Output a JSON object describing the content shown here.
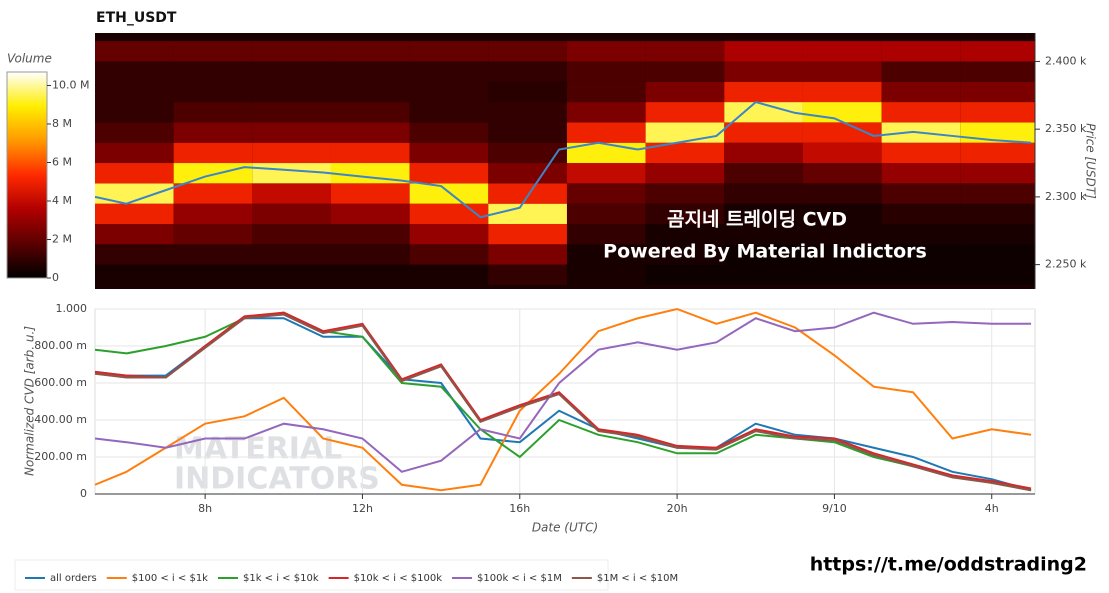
{
  "chart_data": [
    {
      "type": "heatmap",
      "title": "ETH_USDT",
      "colorbar_title": "Volume",
      "ylabel": "Price [USDT]",
      "x_edges": [
        5.2,
        7.2,
        9.2,
        11.2,
        13.2,
        15.2,
        17.2,
        19.2,
        21.2,
        23.2,
        25.2,
        27.2,
        29.1
      ],
      "y_edges": [
        2235,
        2250,
        2265,
        2280,
        2295,
        2310,
        2325,
        2340,
        2355,
        2370,
        2385,
        2400,
        2415
      ],
      "z": [
        [
          0.5,
          0.5,
          0.5,
          0.5,
          0.5,
          1,
          0.5,
          0.3,
          0.3,
          0.3,
          0.3,
          0.3
        ],
        [
          1,
          1,
          1,
          1,
          1.5,
          2.5,
          0.5,
          0.5,
          0.3,
          0.3,
          0.3,
          0.3
        ],
        [
          2.5,
          2,
          1.5,
          1.5,
          3,
          5,
          1,
          0.5,
          0.5,
          0.5,
          0.5,
          0.5
        ],
        [
          5,
          3,
          2.5,
          3,
          5,
          9.5,
          1.5,
          1,
          0.5,
          0.5,
          0.8,
          0.8
        ],
        [
          9.5,
          5,
          4,
          5,
          9,
          5,
          2,
          1.5,
          1,
          1,
          1.5,
          1.5
        ],
        [
          5,
          9,
          9.5,
          9,
          5,
          2.5,
          4,
          3,
          1.5,
          2,
          3,
          3
        ],
        [
          2.5,
          5,
          5,
          5,
          2.5,
          1.5,
          9,
          5,
          3,
          4,
          5,
          5
        ],
        [
          1.5,
          2.5,
          2.5,
          2.5,
          1.5,
          1,
          5,
          9.5,
          5,
          5,
          9.5,
          9
        ],
        [
          1,
          1.5,
          1.5,
          1.5,
          1,
          1,
          2.5,
          5,
          9.5,
          9,
          5,
          5
        ],
        [
          1,
          1,
          1,
          1,
          1,
          0.8,
          1.5,
          2.5,
          5,
          5,
          2.5,
          2.5
        ],
        [
          1,
          1,
          1,
          1,
          1,
          1,
          1.5,
          1.5,
          2.5,
          2.5,
          1.5,
          1.5
        ],
        [
          2,
          2,
          2,
          2,
          2,
          2,
          2.5,
          2.5,
          3.5,
          3.5,
          3.5,
          3.5
        ]
      ],
      "colorscale": [
        "#000000",
        "#5a0000",
        "#b00000",
        "#ff2a00",
        "#ff9900",
        "#ffee00",
        "#ffffff"
      ],
      "zlim": [
        0,
        10.7
      ],
      "zticks": [
        0,
        {
          "value": 2,
          "label": "2 M"
        },
        {
          "value": 4,
          "label": "4 M"
        },
        {
          "value": 6,
          "label": "6 M"
        },
        {
          "value": 8,
          "label": "8 M"
        },
        {
          "value": 10,
          "label": "10.0 M"
        }
      ],
      "xlim": [
        5.2,
        29.1
      ],
      "ylim": [
        2232,
        2421
      ],
      "yticks": [
        {
          "value": 2250,
          "label": "2.250 k"
        },
        {
          "value": 2300,
          "label": "2.300 k"
        },
        {
          "value": 2350,
          "label": "2.350 k"
        },
        {
          "value": 2400,
          "label": "2.400 k"
        }
      ],
      "price_line": {
        "color": "#3a86c8",
        "x": [
          5.2,
          6,
          7,
          8,
          9,
          10,
          11,
          12,
          13,
          14,
          15,
          16,
          17,
          18,
          19,
          20,
          21,
          22,
          23,
          24,
          25,
          26,
          27,
          28,
          29
        ],
        "values": [
          2300,
          2295,
          2305,
          2315,
          2322,
          2320,
          2318,
          2315,
          2312,
          2308,
          2285,
          2292,
          2335,
          2340,
          2335,
          2340,
          2345,
          2370,
          2362,
          2358,
          2345,
          2348,
          2345,
          2342,
          2340
        ]
      }
    },
    {
      "type": "line",
      "xlabel": "Date (UTC)",
      "ylabel": "Normalized CVD [arb. u.]",
      "x": [
        5.2,
        6,
        7,
        8,
        9,
        10,
        11,
        12,
        13,
        14,
        15,
        16,
        17,
        18,
        19,
        20,
        21,
        22,
        23,
        24,
        25,
        26,
        27,
        28,
        29
      ],
      "xlim": [
        5.2,
        29.1
      ],
      "xticks": [
        {
          "value": 8,
          "label": "8h"
        },
        {
          "value": 12,
          "label": "12h"
        },
        {
          "value": 16,
          "label": "16h"
        },
        {
          "value": 20,
          "label": "20h"
        },
        {
          "value": 24,
          "label": "9/10"
        },
        {
          "value": 28,
          "label": "4h"
        }
      ],
      "ylim": [
        0,
        1
      ],
      "yticks": [
        0,
        {
          "value": 0.2,
          "label": "200.00 m"
        },
        {
          "value": 0.4,
          "label": "400.00 m"
        },
        {
          "value": 0.6,
          "label": "600.00 m"
        },
        {
          "value": 0.8,
          "label": "800.00 m"
        },
        {
          "value": 1,
          "label": "1.000"
        }
      ],
      "grid": true,
      "series": [
        {
          "name": "all orders",
          "color": "#1f77b4",
          "values": [
            0.66,
            0.64,
            0.64,
            0.8,
            0.95,
            0.95,
            0.85,
            0.85,
            0.62,
            0.6,
            0.3,
            0.28,
            0.45,
            0.35,
            0.3,
            0.25,
            0.25,
            0.38,
            0.32,
            0.3,
            0.25,
            0.2,
            0.12,
            0.08,
            0.02
          ]
        },
        {
          "name": "$100 < i < $1k",
          "color": "#ff7f0e",
          "values": [
            0.05,
            0.12,
            0.25,
            0.38,
            0.42,
            0.52,
            0.3,
            0.25,
            0.05,
            0.02,
            0.05,
            0.45,
            0.65,
            0.88,
            0.95,
            1.0,
            0.92,
            0.98,
            0.9,
            0.75,
            0.58,
            0.55,
            0.3,
            0.35,
            0.32
          ]
        },
        {
          "name": "$1k < i < $10k",
          "color": "#2ca02c",
          "values": [
            0.78,
            0.76,
            0.8,
            0.85,
            0.95,
            0.98,
            0.88,
            0.85,
            0.6,
            0.58,
            0.35,
            0.2,
            0.4,
            0.32,
            0.28,
            0.22,
            0.22,
            0.32,
            0.3,
            0.28,
            0.2,
            0.15,
            0.1,
            0.06,
            0.02
          ]
        },
        {
          "name": "$10k < i < $100k",
          "color": "#d62728",
          "values": [
            0.66,
            0.64,
            0.63,
            0.8,
            0.96,
            0.98,
            0.88,
            0.92,
            0.62,
            0.7,
            0.4,
            0.48,
            0.55,
            0.35,
            0.32,
            0.26,
            0.25,
            0.35,
            0.31,
            0.3,
            0.22,
            0.16,
            0.1,
            0.07,
            0.03
          ]
        },
        {
          "name": "$100k < i < $1M",
          "color": "#9467bd",
          "values": [
            0.3,
            0.28,
            0.25,
            0.3,
            0.3,
            0.38,
            0.35,
            0.3,
            0.12,
            0.18,
            0.35,
            0.3,
            0.6,
            0.78,
            0.82,
            0.78,
            0.82,
            0.95,
            0.88,
            0.9,
            0.98,
            0.92,
            0.93,
            0.92,
            0.92
          ]
        },
        {
          "name": "$1M < i < $10M",
          "color": "#8c564b",
          "values": [
            0.65,
            0.63,
            0.63,
            0.79,
            0.95,
            0.97,
            0.87,
            0.91,
            0.61,
            0.69,
            0.39,
            0.47,
            0.54,
            0.34,
            0.31,
            0.25,
            0.24,
            0.34,
            0.3,
            0.29,
            0.21,
            0.15,
            0.09,
            0.06,
            0.02
          ]
        }
      ]
    }
  ],
  "overlay_text": [
    "곰지네 트레이딩 CVD",
    "Powered By Material Indictors"
  ],
  "watermark": [
    "MATERIAL",
    "INDICATORS"
  ],
  "footer_link": "https://t.me/oddstrading2"
}
